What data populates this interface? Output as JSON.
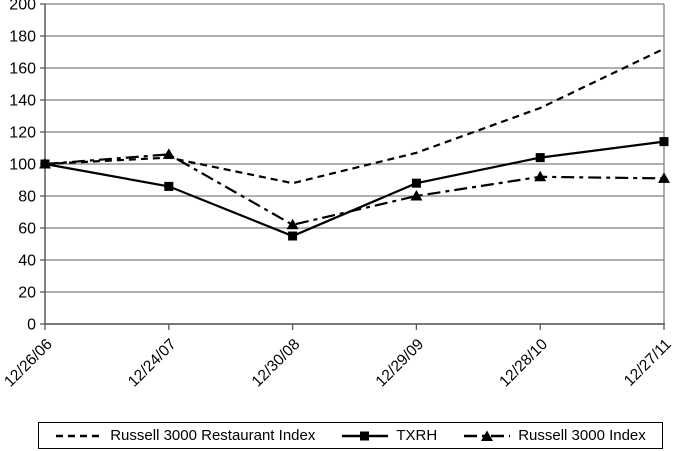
{
  "chart_data": {
    "type": "line",
    "title": "",
    "xlabel": "",
    "ylabel": "",
    "categories": [
      "12/26/06",
      "12/24/07",
      "12/30/08",
      "12/29/09",
      "12/28/10",
      "12/27/11"
    ],
    "series": [
      {
        "name": "Russell 3000 Restaurant Index",
        "style": "dashed",
        "marker": "none",
        "values": [
          100,
          104,
          88,
          107,
          135,
          172
        ]
      },
      {
        "name": "Russell 3000 Index",
        "style": "dashdot",
        "marker": "triangle",
        "values": [
          100,
          106,
          62,
          80,
          92,
          91
        ]
      },
      {
        "name": "TXRH",
        "style": "solid",
        "marker": "square",
        "values": [
          100,
          86,
          55,
          88,
          104,
          114
        ]
      }
    ],
    "legend_order": [
      "Russell 3000 Restaurant Index",
      "TXRH",
      "Russell 3000 Index"
    ],
    "ylim": [
      0,
      200
    ],
    "y_ticks": [
      0,
      20,
      40,
      60,
      80,
      100,
      120,
      140,
      160,
      180,
      200
    ],
    "grid": true,
    "legend_position": "bottom",
    "colors": {
      "line": "#000000",
      "grid": "#808080",
      "axis": "#595959",
      "background": "#ffffff",
      "text": "#000000"
    }
  }
}
